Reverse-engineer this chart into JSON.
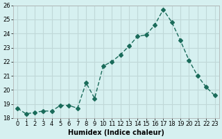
{
  "x": [
    0,
    1,
    2,
    3,
    4,
    5,
    6,
    7,
    8,
    9,
    10,
    11,
    12,
    13,
    14,
    15,
    16,
    17,
    18,
    19,
    20,
    21,
    22,
    23
  ],
  "y": [
    18.7,
    18.3,
    18.4,
    18.5,
    18.5,
    18.9,
    18.9,
    18.7,
    20.5,
    19.4,
    21.7,
    22.0,
    22.5,
    23.1,
    23.8,
    23.9,
    24.6,
    25.7,
    24.8,
    23.5,
    22.1,
    21.0,
    20.2,
    19.6
  ],
  "line_color": "#1a6b5a",
  "marker": "D",
  "marker_size": 3,
  "bg_color": "#d6f0f0",
  "grid_color": "#c0d8d8",
  "xlabel": "Humidex (Indice chaleur)",
  "ylim": [
    18,
    26
  ],
  "yticks": [
    18,
    19,
    20,
    21,
    22,
    23,
    24,
    25,
    26
  ],
  "xticks": [
    0,
    1,
    2,
    3,
    4,
    5,
    6,
    7,
    8,
    9,
    10,
    11,
    12,
    13,
    14,
    15,
    16,
    17,
    18,
    19,
    20,
    21,
    22,
    23
  ],
  "title_fontsize": 8,
  "label_fontsize": 7,
  "tick_fontsize": 6
}
